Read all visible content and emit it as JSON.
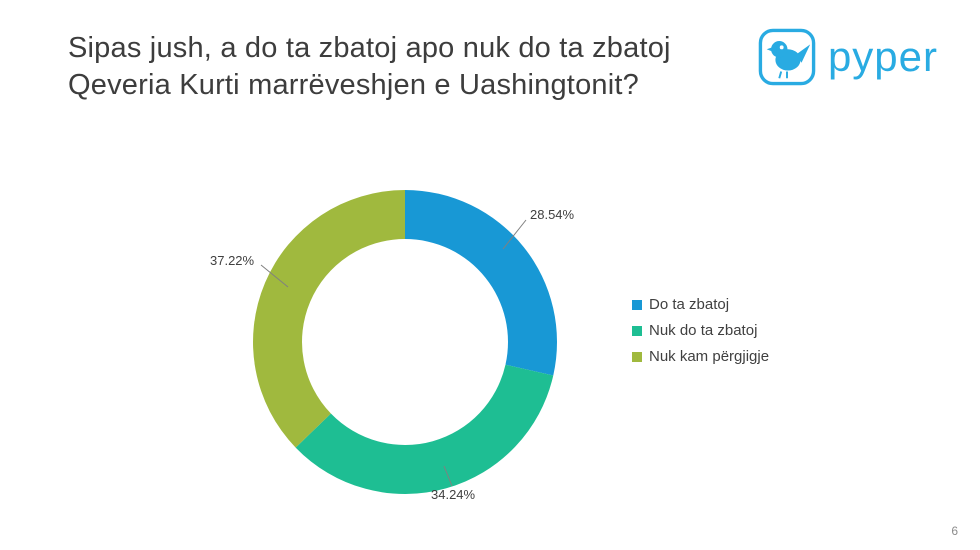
{
  "title": "Sipas jush, a do ta zbatoj apo nuk do ta zbatoj Qeveria Kurti marrëveshjen e Uashingtonit?",
  "logo": {
    "brand": "pyper",
    "color": "#29abe2"
  },
  "slide_number": "6",
  "chart_data": {
    "type": "pie",
    "donut": true,
    "title": "Sipas jush, a do ta zbatoj apo nuk do ta zbatoj Qeveria Kurti marrëveshjen e Uashingtonit?",
    "labels": [
      "Do ta zbatoj",
      "Nuk do ta zbatoj",
      "Nuk kam përgjigje"
    ],
    "values": [
      28.54,
      34.24,
      37.22
    ],
    "value_labels": [
      "28.54%",
      "34.24%",
      "37.22%"
    ],
    "colors": [
      "#1898d5",
      "#1ebe93",
      "#a0b93e"
    ],
    "start_angle_deg": 0,
    "direction": "clockwise",
    "legend_position": "right"
  }
}
